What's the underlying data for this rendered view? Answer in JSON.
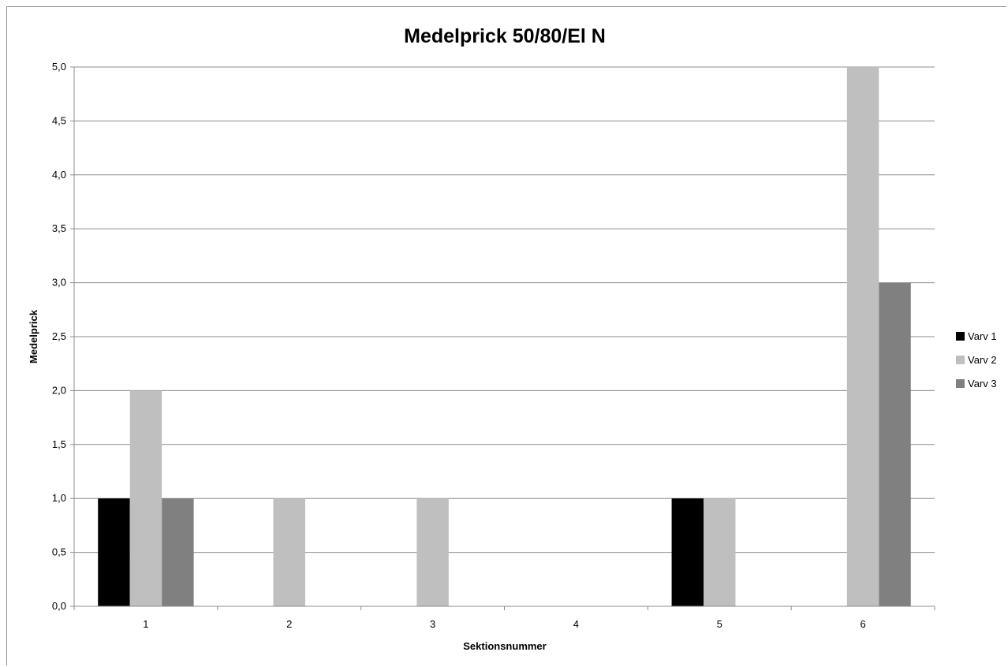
{
  "chart_data": {
    "type": "bar",
    "title": "Medelprick 50/80/El N",
    "xlabel": "Sektionsnummer",
    "ylabel": "Medelprick",
    "categories": [
      "1",
      "2",
      "3",
      "4",
      "5",
      "6"
    ],
    "ylim": [
      0,
      5
    ],
    "ytick_step": 0.5,
    "ytick_labels": [
      "0,0",
      "0,5",
      "1,0",
      "1,5",
      "2,0",
      "2,5",
      "3,0",
      "3,5",
      "4,0",
      "4,5",
      "5,0"
    ],
    "grid": true,
    "legend_position": "right",
    "series": [
      {
        "name": "Varv 1",
        "color": "#000000",
        "values": [
          1,
          0,
          0,
          0,
          1,
          0
        ]
      },
      {
        "name": "Varv 2",
        "color": "#bfbfbf",
        "values": [
          2,
          1,
          1,
          0,
          1,
          5
        ]
      },
      {
        "name": "Varv 3",
        "color": "#808080",
        "values": [
          1,
          0,
          0,
          0,
          0,
          3
        ]
      }
    ]
  }
}
